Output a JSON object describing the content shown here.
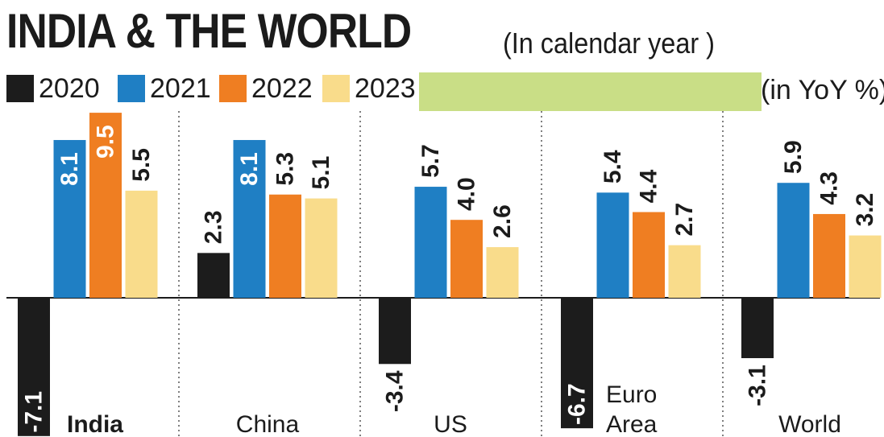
{
  "title": "INDIA & THE WORLD",
  "subtitle": "(In calendar year )",
  "units": "(in YoY %)",
  "colors": {
    "2020": "#1c1c1c",
    "2021": "#1f7fc4",
    "2022": "#ef7e22",
    "2023": "#f9dc8b",
    "highlight": "#c9de86"
  },
  "chart_data": {
    "type": "bar",
    "categories": [
      "India",
      "China",
      "US",
      "Euro Area",
      "World"
    ],
    "series": [
      {
        "name": "2020",
        "values": [
          -7.1,
          2.3,
          -3.4,
          -6.7,
          -3.1
        ]
      },
      {
        "name": "2021",
        "values": [
          8.1,
          8.1,
          5.7,
          5.4,
          5.9
        ]
      },
      {
        "name": "2022",
        "values": [
          9.5,
          5.3,
          4.0,
          4.4,
          4.3
        ]
      },
      {
        "name": "2023",
        "values": [
          5.5,
          5.1,
          2.6,
          2.7,
          3.2
        ]
      }
    ],
    "value_labels": [
      [
        "-7.1",
        "2.3",
        "-3.4",
        "-6.7",
        "-3.1"
      ],
      [
        "8.1",
        "8.1",
        "5.7",
        "5.4",
        "5.9"
      ],
      [
        "9.5",
        "5.3",
        "4.0",
        "4.4",
        "4.3"
      ],
      [
        "5.5",
        "5.1",
        "2.6",
        "2.7",
        "3.2"
      ]
    ],
    "category_labels": [
      [
        "India"
      ],
      [
        "China"
      ],
      [
        "US"
      ],
      [
        "Euro",
        "Area"
      ],
      [
        "World"
      ]
    ],
    "bold_category": "India",
    "ylim": [
      -7.1,
      9.5
    ],
    "legend_position": "top-left",
    "grid": false
  }
}
